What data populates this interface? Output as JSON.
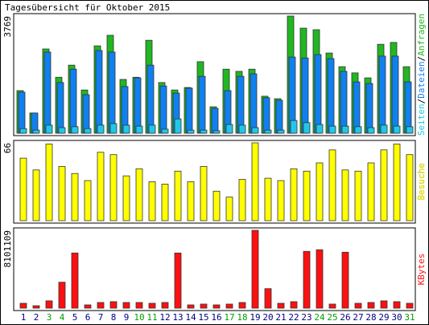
{
  "title": "Tagesübersicht für Oktober 2015",
  "legend_separator": "/",
  "chart_data": [
    {
      "type": "bar",
      "ylim": [
        0,
        3769
      ],
      "yticks": [
        3769
      ],
      "series": [
        {
          "name": "Anfragen",
          "color": "#20b820",
          "values": [
            1370,
            650,
            2710,
            1800,
            2190,
            1390,
            2810,
            3150,
            1730,
            1800,
            2990,
            1630,
            1390,
            1470,
            2300,
            850,
            2060,
            1990,
            2060,
            1190,
            1110,
            3769,
            3380,
            3330,
            2580,
            2140,
            1940,
            1780,
            2860,
            2920,
            2140
          ]
        },
        {
          "name": "Dateien",
          "color": "#1080f0",
          "values": [
            1320,
            650,
            2610,
            1630,
            2060,
            1240,
            2660,
            2610,
            1500,
            1780,
            2190,
            1520,
            1290,
            1450,
            1830,
            800,
            1370,
            1830,
            1910,
            1140,
            1060,
            2450,
            2420,
            2530,
            2400,
            1990,
            1650,
            1600,
            2480,
            2480,
            1650
          ]
        },
        {
          "name": "Seiten",
          "color": "#20c8e8",
          "values": [
            150,
            100,
            260,
            180,
            210,
            150,
            260,
            310,
            260,
            230,
            260,
            130,
            460,
            100,
            100,
            80,
            280,
            260,
            180,
            100,
            100,
            410,
            340,
            280,
            230,
            230,
            210,
            180,
            260,
            230,
            210
          ]
        }
      ]
    },
    {
      "type": "bar",
      "ylim": [
        0,
        66
      ],
      "yticks": [
        66
      ],
      "series": [
        {
          "name": "Besuche",
          "color": "#ffff00",
          "values": [
            53,
            43,
            65,
            46,
            40,
            34,
            58,
            56,
            38,
            44,
            33,
            31,
            42,
            33,
            46,
            25,
            20,
            35,
            66,
            36,
            34,
            44,
            42,
            49,
            60,
            43,
            42,
            49,
            60,
            65,
            56
          ]
        }
      ]
    },
    {
      "type": "bar",
      "ylim": [
        0,
        8101109
      ],
      "yticks": [
        8101109
      ],
      "categories": [
        "1",
        "2",
        "3",
        "4",
        "5",
        "6",
        "7",
        "8",
        "9",
        "10",
        "11",
        "12",
        "13",
        "14",
        "15",
        "16",
        "17",
        "18",
        "19",
        "20",
        "21",
        "22",
        "23",
        "24",
        "25",
        "26",
        "27",
        "28",
        "29",
        "30",
        "31"
      ],
      "category_colors": [
        "#000080",
        "#000080",
        "#00a000",
        "#00a000",
        "#000080",
        "#000080",
        "#000080",
        "#000080",
        "#000080",
        "#00a000",
        "#00a000",
        "#000080",
        "#000080",
        "#000080",
        "#000080",
        "#000080",
        "#00a000",
        "#00a000",
        "#000080",
        "#000080",
        "#000080",
        "#000080",
        "#000080",
        "#00a000",
        "#00a000",
        "#000080",
        "#000080",
        "#000080",
        "#000080",
        "#000080",
        "#00a000"
      ],
      "series": [
        {
          "name": "KBytes",
          "color": "#ff1010",
          "values": [
            506000,
            253000,
            760000,
            2700000,
            5740000,
            338000,
            590000,
            675000,
            590000,
            590000,
            506000,
            590000,
            5740000,
            338000,
            422000,
            338000,
            422000,
            590000,
            8101109,
            2030000,
            506000,
            675000,
            5910000,
            6080000,
            422000,
            5820000,
            506000,
            590000,
            760000,
            675000,
            506000
          ]
        }
      ]
    }
  ]
}
